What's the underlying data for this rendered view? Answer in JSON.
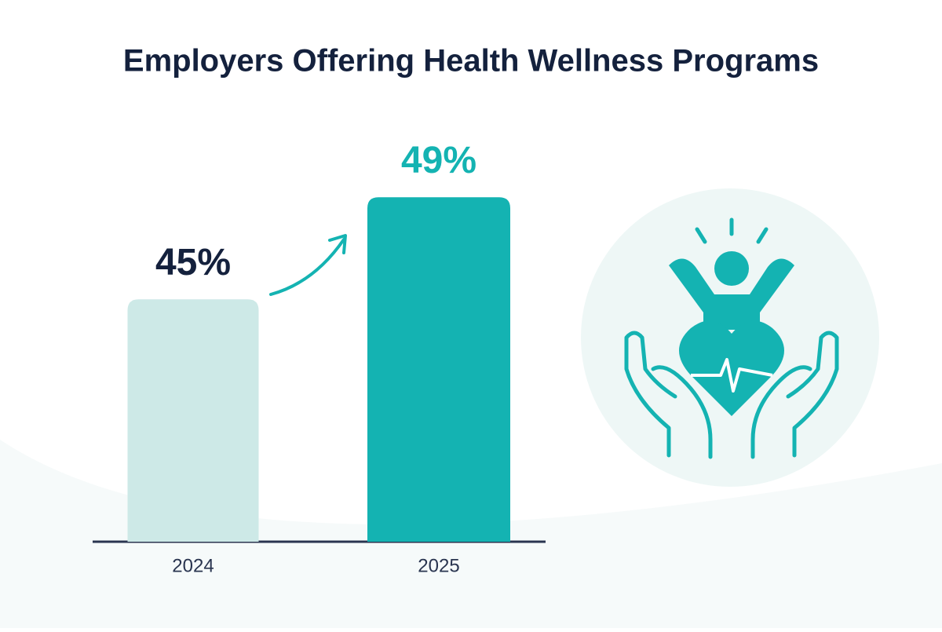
{
  "chart_data": {
    "type": "bar",
    "title": "Employers Offering Health Wellness Programs",
    "categories": [
      "2024",
      "2025"
    ],
    "values": [
      45,
      49
    ],
    "value_labels": [
      "45%",
      "49%"
    ],
    "colors": [
      "#cde9e7",
      "#14b3b2"
    ],
    "label_colors": [
      "#14213d",
      "#14b3b2"
    ],
    "ylim": [
      35.5,
      51.5
    ]
  }
}
